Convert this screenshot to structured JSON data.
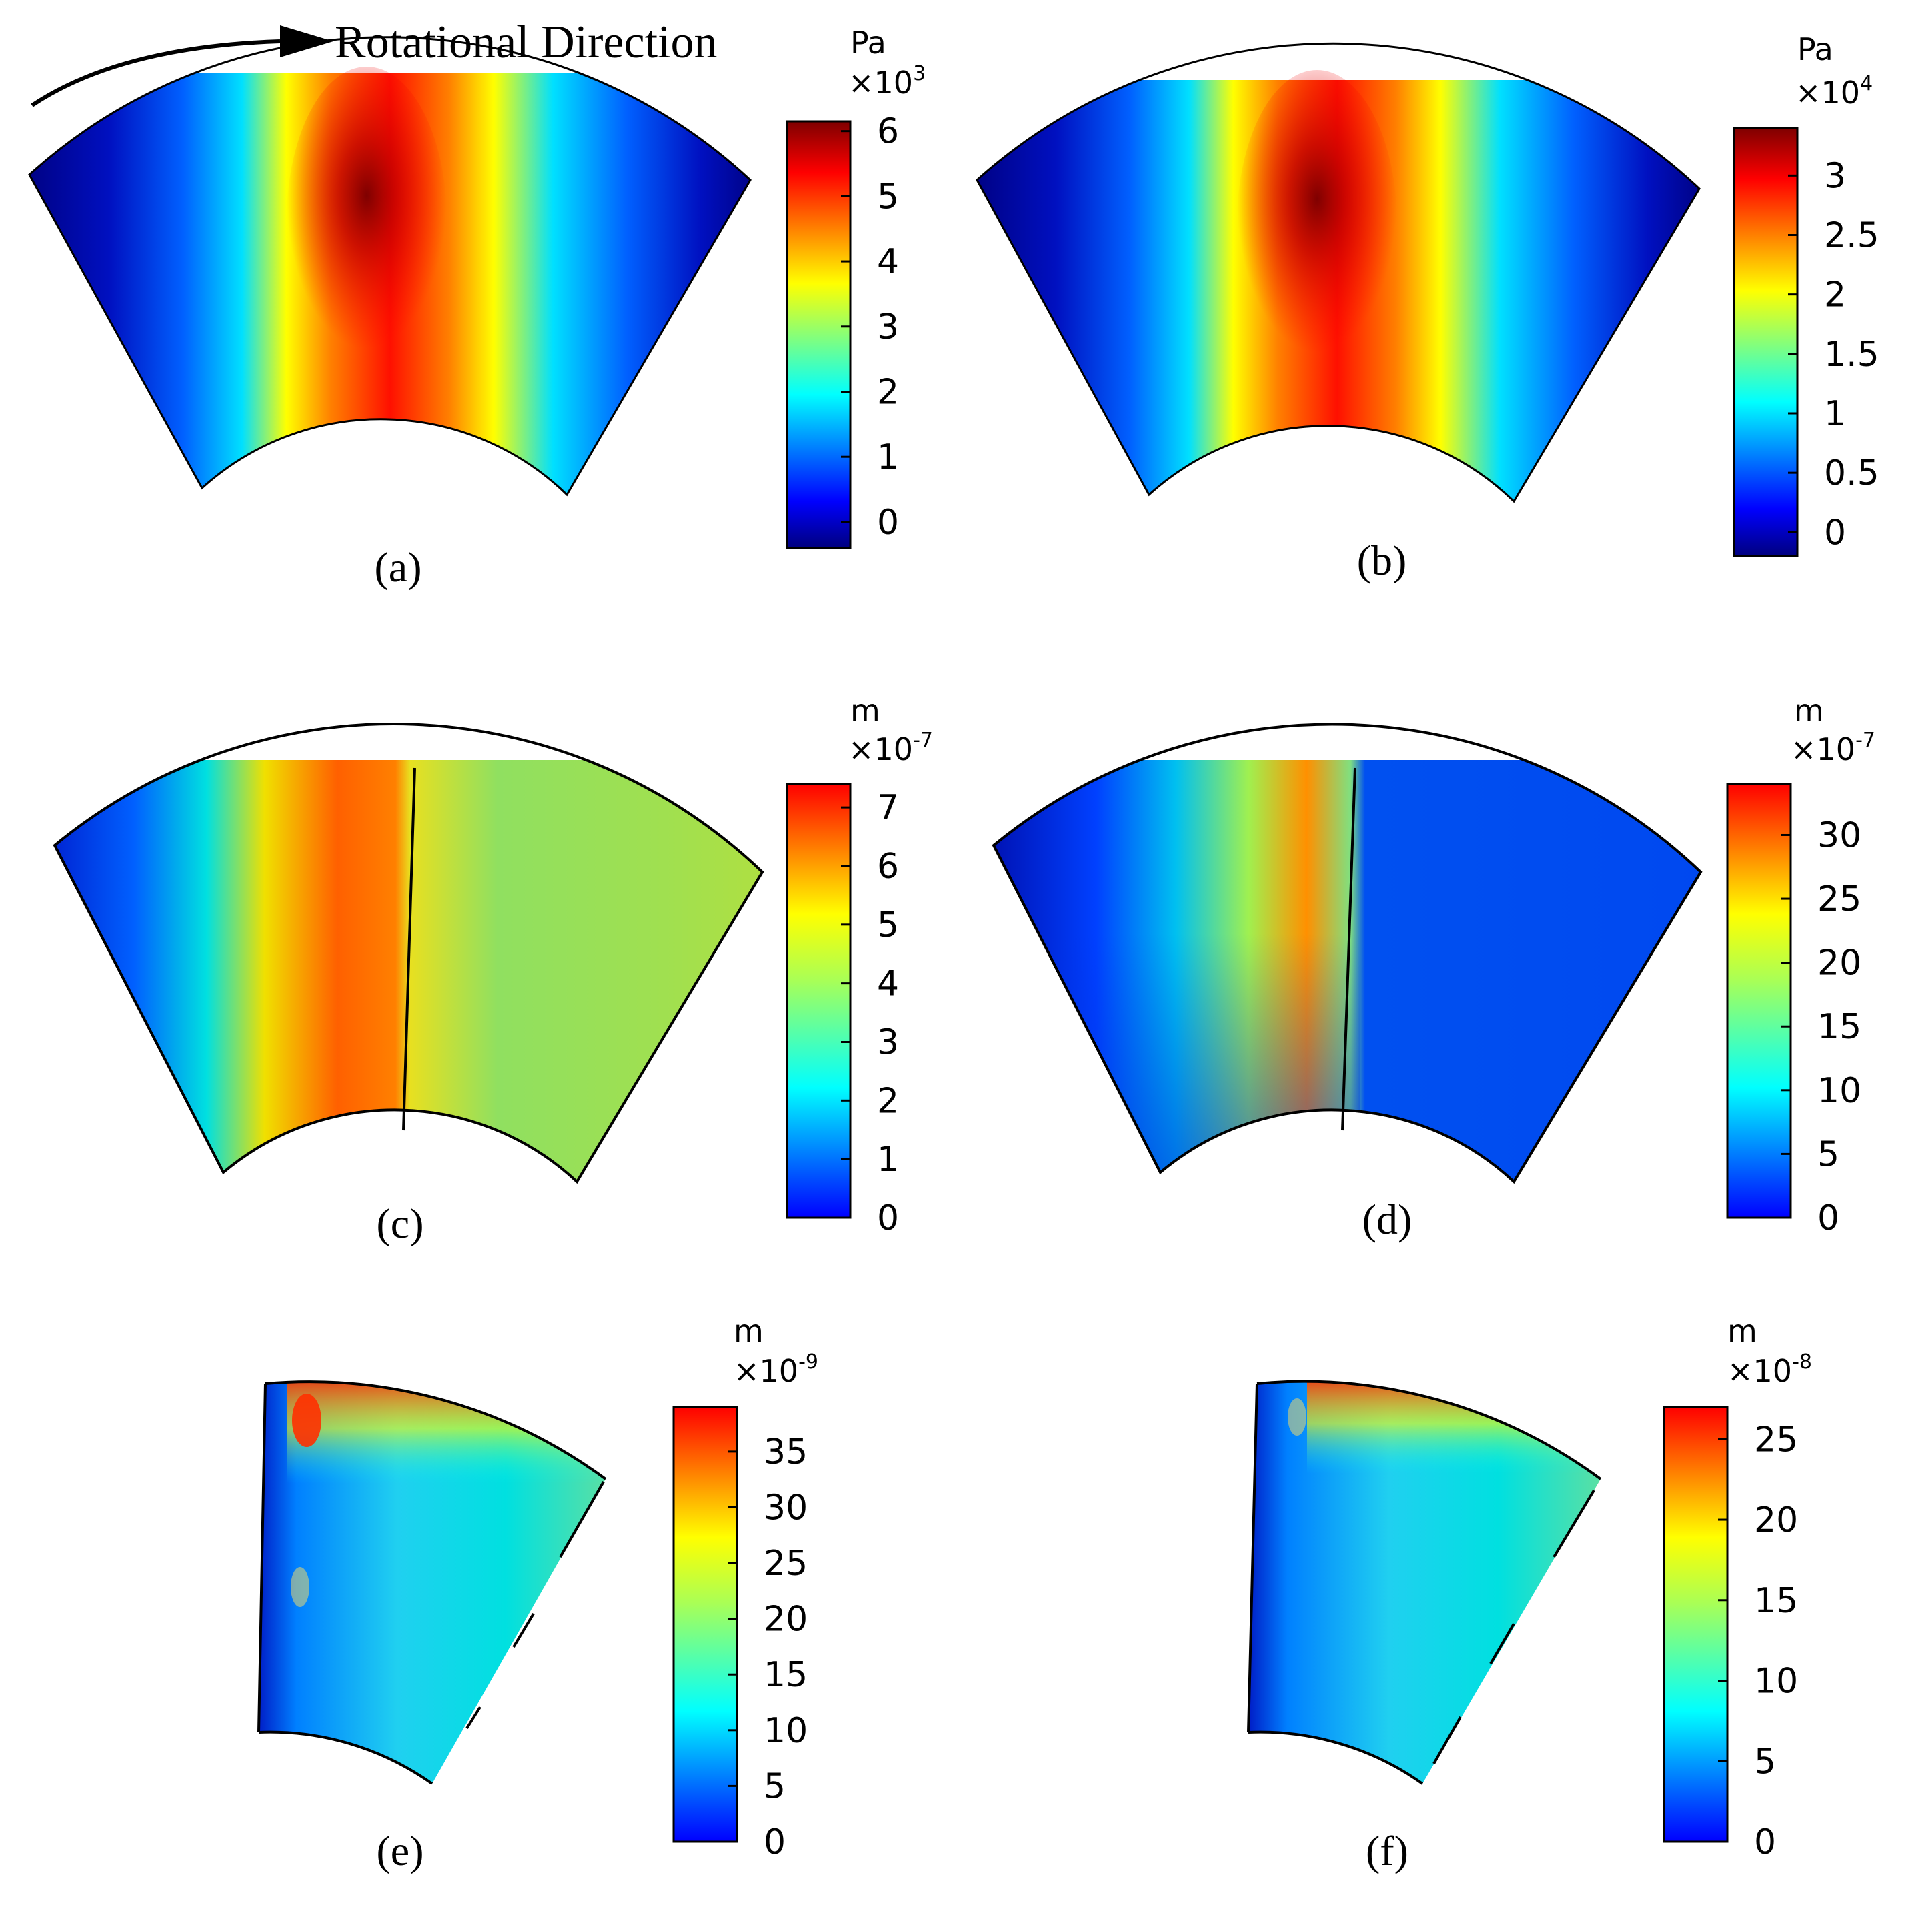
{
  "annotation": {
    "rotation_label": "Rotational Direction"
  },
  "panels": [
    {
      "caption": "(a)",
      "unit": "Pa",
      "multiplier_base": "×10",
      "multiplier_exp": "3",
      "ticks": [
        "6",
        "5",
        "4",
        "3",
        "2",
        "1",
        "0"
      ],
      "field": "pressure",
      "range": [
        -0.4,
        6.15
      ]
    },
    {
      "caption": "(b)",
      "unit": "Pa",
      "multiplier_base": "×10",
      "multiplier_exp": "4",
      "ticks": [
        "3",
        "2.5",
        "2",
        "1.5",
        "1",
        "0.5",
        "0"
      ],
      "field": "pressure",
      "range": [
        -0.2,
        3.4
      ]
    },
    {
      "caption": "(c)",
      "unit": "m",
      "multiplier_base": "×10",
      "multiplier_exp": "-7",
      "ticks": [
        "7",
        "6",
        "5",
        "4",
        "3",
        "2",
        "1",
        "0"
      ],
      "field": "deformation",
      "range": [
        0,
        7.4
      ]
    },
    {
      "caption": "(d)",
      "unit": "m",
      "multiplier_base": "×10",
      "multiplier_exp": "-7",
      "ticks": [
        "30",
        "25",
        "20",
        "15",
        "10",
        "5",
        "0"
      ],
      "field": "deformation",
      "range": [
        0,
        34
      ]
    },
    {
      "caption": "(e)",
      "unit": "m",
      "multiplier_base": "×10",
      "multiplier_exp": "-9",
      "ticks": [
        "35",
        "30",
        "25",
        "20",
        "15",
        "10",
        "5",
        "0"
      ],
      "field": "slice",
      "range": [
        0,
        39
      ]
    },
    {
      "caption": "(f)",
      "unit": "m",
      "multiplier_base": "×10",
      "multiplier_exp": "-8",
      "ticks": [
        "25",
        "20",
        "15",
        "10",
        "5",
        "0"
      ],
      "field": "slice",
      "range": [
        0,
        27
      ]
    }
  ],
  "colors": {
    "colormap": "jet",
    "outline": "#000000"
  }
}
